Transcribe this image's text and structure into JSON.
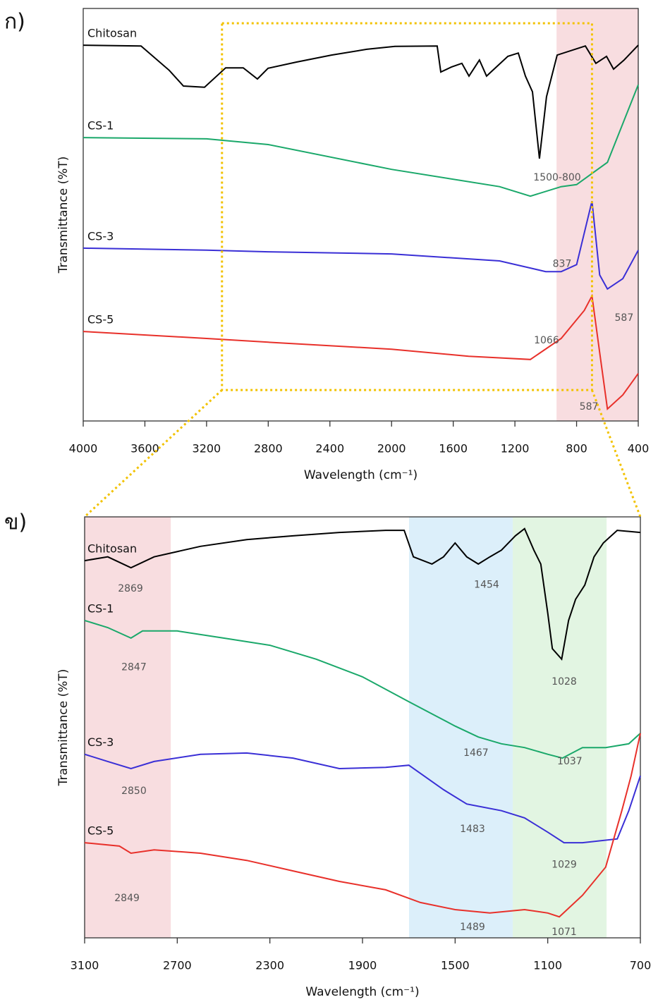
{
  "chart_data": [
    {
      "type": "line",
      "panel_label": "ก)",
      "xlabel": "Wavelength (cm⁻¹)",
      "ylabel": "Transmittance (%T)",
      "xlim": [
        4000,
        400
      ],
      "ylim": [
        0,
        100
      ],
      "xticks": [
        4000,
        3600,
        3200,
        2800,
        2400,
        2000,
        1600,
        1200,
        800,
        400
      ],
      "regions": [
        {
          "x": [
            930,
            400
          ],
          "color": "#f4c6cc"
        }
      ],
      "highlight_box": {
        "x": [
          3100,
          700
        ],
        "y": [
          7.5,
          96.4
        ],
        "color": "#f2c200"
      },
      "series": [
        {
          "name": "Chitosan",
          "color": "#000000",
          "x": [
            4000,
            3625,
            3442,
            3350,
            3213,
            3076,
            2962,
            2870,
            2801,
            2619,
            2390,
            2161,
            1978,
            1704,
            1681,
            1612,
            1544,
            1498,
            1430,
            1384,
            1246,
            1178,
            1132,
            1086,
            1041,
            995,
            926,
            743,
            675,
            606,
            560,
            492,
            400
          ],
          "values": [
            91.1,
            90.9,
            85.0,
            81.2,
            80.9,
            85.6,
            85.6,
            82.9,
            85.5,
            87.0,
            88.7,
            90.1,
            90.8,
            90.9,
            84.6,
            85.8,
            86.7,
            83.6,
            87.5,
            83.6,
            88.4,
            89.2,
            83.6,
            79.8,
            63.6,
            78.6,
            88.7,
            90.9,
            86.7,
            88.4,
            85.3,
            87.5,
            91.1
          ]
        },
        {
          "name": "CS-1",
          "color": "#1aa86a",
          "x": [
            4000,
            3200,
            2800,
            2000,
            1300,
            1100,
            900,
            800,
            600,
            400
          ],
          "values": [
            68.7,
            68.4,
            67.0,
            61.0,
            56.8,
            54.5,
            56.8,
            57.3,
            62.7,
            81.5
          ]
        },
        {
          "name": "CS-3",
          "color": "#3a2fd6",
          "x": [
            4000,
            3200,
            2800,
            2000,
            1300,
            1000,
            900,
            800,
            700,
            650,
            600,
            500,
            400
          ],
          "values": [
            41.9,
            41.4,
            41.0,
            40.5,
            38.8,
            36.2,
            36.2,
            37.9,
            53.3,
            35.4,
            32.0,
            34.5,
            41.4
          ]
        },
        {
          "name": "CS-5",
          "color": "#e8302a",
          "x": [
            4000,
            3200,
            2800,
            2000,
            1500,
            1100,
            900,
            750,
            700,
            650,
            600,
            500,
            400
          ],
          "values": [
            21.7,
            20.0,
            19.1,
            17.4,
            15.7,
            14.9,
            20.0,
            26.8,
            30.3,
            16.6,
            2.9,
            6.3,
            11.5
          ]
        }
      ],
      "annotations": [
        {
          "text": "1500-800",
          "x": 926,
          "y": 59
        },
        {
          "text": "837",
          "x": 894,
          "y": 38
        },
        {
          "text": "587",
          "x": 492,
          "y": 25
        },
        {
          "text": "1066",
          "x": 995,
          "y": 19.5
        },
        {
          "text": "587",
          "x": 720,
          "y": 3.4
        }
      ]
    },
    {
      "type": "line",
      "panel_label": "ข)",
      "xlabel": "Wavelength (cm⁻¹)",
      "ylabel": "Transmittance (%T)",
      "xlim": [
        3100,
        700
      ],
      "ylim": [
        0,
        100
      ],
      "xticks": [
        3100,
        2700,
        2300,
        1900,
        1500,
        1100,
        700
      ],
      "regions": [
        {
          "x": [
            3100,
            2728
          ],
          "color": "#f4c6cc"
        },
        {
          "x": [
            1699,
            1251
          ],
          "color": "#c4e4f6"
        },
        {
          "x": [
            1251,
            846
          ],
          "color": "#cfeecf"
        }
      ],
      "series": [
        {
          "name": "Chitosan",
          "color": "#000000",
          "x": [
            3100,
            3000,
            2900,
            2800,
            2600,
            2400,
            2200,
            2000,
            1800,
            1720,
            1680,
            1600,
            1550,
            1500,
            1450,
            1400,
            1350,
            1300,
            1240,
            1200,
            1160,
            1130,
            1100,
            1080,
            1040,
            1010,
            980,
            940,
            900,
            860,
            800,
            700
          ],
          "values": [
            89.6,
            90.5,
            87.9,
            90.5,
            93.0,
            94.6,
            95.5,
            96.3,
            96.8,
            96.8,
            90.5,
            88.8,
            90.5,
            93.8,
            90.5,
            88.8,
            90.5,
            92.1,
            95.5,
            97.2,
            92.1,
            88.8,
            77.1,
            68.7,
            66.2,
            75.4,
            80.4,
            83.8,
            90.5,
            93.8,
            96.8,
            96.3
          ]
        },
        {
          "name": "CS-1",
          "color": "#1aa86a",
          "x": [
            3100,
            3000,
            2900,
            2850,
            2700,
            2500,
            2300,
            2100,
            1900,
            1700,
            1500,
            1400,
            1300,
            1200,
            1100,
            1037,
            950,
            850,
            750,
            700
          ],
          "values": [
            75.4,
            73.7,
            71.2,
            72.9,
            72.9,
            71.2,
            69.5,
            66.2,
            62.0,
            56.1,
            50.3,
            47.7,
            46.1,
            45.2,
            43.6,
            42.7,
            45.2,
            45.2,
            46.1,
            48.6
          ]
        },
        {
          "name": "CS-3",
          "color": "#3a2fd6",
          "x": [
            3100,
            3000,
            2900,
            2800,
            2600,
            2400,
            2200,
            2000,
            1800,
            1700,
            1550,
            1450,
            1300,
            1200,
            1100,
            1030,
            950,
            800,
            750,
            700
          ],
          "values": [
            43.6,
            41.9,
            40.2,
            41.9,
            43.6,
            43.9,
            42.7,
            40.2,
            40.5,
            41.0,
            35.2,
            31.8,
            30.2,
            28.5,
            25.1,
            22.6,
            22.6,
            23.5,
            30.2,
            38.5
          ]
        },
        {
          "name": "CS-5",
          "color": "#e8302a",
          "x": [
            3100,
            2950,
            2900,
            2800,
            2600,
            2400,
            2200,
            2000,
            1800,
            1650,
            1500,
            1350,
            1200,
            1100,
            1050,
            950,
            850,
            780,
            740,
            700
          ],
          "values": [
            22.6,
            21.8,
            20.1,
            20.9,
            20.1,
            18.4,
            15.9,
            13.4,
            11.4,
            8.4,
            6.7,
            5.9,
            6.7,
            5.9,
            5.0,
            10.1,
            16.8,
            30.2,
            38.5,
            48.6
          ]
        }
      ],
      "annotations": [
        {
          "text": "2869",
          "x": 2902,
          "y": 82.9
        },
        {
          "text": "1454",
          "x": 1364,
          "y": 83.8
        },
        {
          "text": "1028",
          "x": 1029,
          "y": 60.8
        },
        {
          "text": "2847",
          "x": 2887,
          "y": 64.2
        },
        {
          "text": "1467",
          "x": 1410,
          "y": 43.9
        },
        {
          "text": "1037",
          "x": 1005,
          "y": 41.9
        },
        {
          "text": "2850",
          "x": 2887,
          "y": 34.8
        },
        {
          "text": "1483",
          "x": 1425,
          "y": 25.8
        },
        {
          "text": "1029",
          "x": 1029,
          "y": 17.3
        },
        {
          "text": "2849",
          "x": 2917,
          "y": 9.4
        },
        {
          "text": "1489",
          "x": 1425,
          "y": 2.5
        },
        {
          "text": "1071",
          "x": 1029,
          "y": 1.3
        }
      ]
    }
  ]
}
